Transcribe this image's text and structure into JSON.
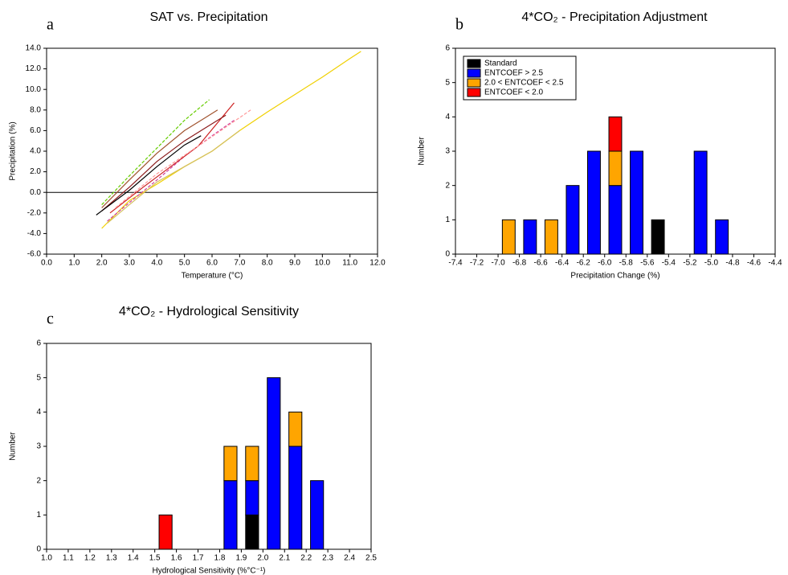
{
  "chart_data": [
    {
      "type": "line",
      "panel_label": "a",
      "title": "SAT vs. Precipitation",
      "xlabel": "Temperature (°C)",
      "ylabel": "Precipitation (%)",
      "xlim": [
        0,
        12
      ],
      "ylim": [
        -6,
        14
      ],
      "hline": 0,
      "xticks": [
        {
          "value": 0,
          "label": "0.0"
        },
        {
          "value": 1,
          "label": "1.0"
        },
        {
          "value": 2,
          "label": "2.0"
        },
        {
          "value": 3,
          "label": "3.0"
        },
        {
          "value": 4,
          "label": "4.0"
        },
        {
          "value": 5,
          "label": "5.0"
        },
        {
          "value": 6,
          "label": "6.0"
        },
        {
          "value": 7,
          "label": "7.0"
        },
        {
          "value": 8,
          "label": "8.0"
        },
        {
          "value": 9,
          "label": "9.0"
        },
        {
          "value": 10,
          "label": "10.0"
        },
        {
          "value": 11,
          "label": "11.0"
        },
        {
          "value": 12,
          "label": "12.0"
        }
      ],
      "yticks": [
        {
          "value": -6,
          "label": "-6.0"
        },
        {
          "value": -4,
          "label": "-4.0"
        },
        {
          "value": -2,
          "label": "-2.0"
        },
        {
          "value": 0,
          "label": "0.0"
        },
        {
          "value": 2,
          "label": "2.0"
        },
        {
          "value": 4,
          "label": "4.0"
        },
        {
          "value": 6,
          "label": "6.0"
        },
        {
          "value": 8,
          "label": "8.0"
        },
        {
          "value": 10,
          "label": "10.0"
        },
        {
          "value": 12,
          "label": "12.0"
        },
        {
          "value": 14,
          "label": "14.0"
        }
      ],
      "series": [
        {
          "color": "#f0d000",
          "dashed": false,
          "x": [
            2.0,
            3,
            4,
            5,
            6,
            7,
            8,
            9,
            10,
            11,
            11.4
          ],
          "values": [
            -3.5,
            -0.8,
            0.8,
            2.5,
            4.0,
            6.0,
            7.8,
            9.5,
            11.2,
            13.0,
            13.7
          ]
        },
        {
          "color": "#d4c060",
          "dashed": false,
          "x": [
            2.2,
            3,
            4,
            5,
            6,
            7
          ],
          "values": [
            -3.0,
            -1.2,
            1.0,
            2.5,
            4.0,
            6.0
          ]
        },
        {
          "color": "#66cc00",
          "dashed": true,
          "x": [
            2.0,
            3,
            4,
            5,
            5.9
          ],
          "values": [
            -1.2,
            1.6,
            4.3,
            7.0,
            9.0
          ]
        },
        {
          "color": "#a0522d",
          "dashed": false,
          "x": [
            2.0,
            3,
            4,
            5,
            6.2
          ],
          "values": [
            -1.5,
            1.2,
            3.8,
            6.0,
            8.0
          ]
        },
        {
          "color": "#d040a0",
          "dashed": true,
          "x": [
            2.2,
            3,
            4,
            5,
            6,
            6.8
          ],
          "values": [
            -2.8,
            -1.0,
            1.2,
            3.5,
            5.5,
            7.0
          ]
        },
        {
          "color": "#cc2020",
          "dashed": false,
          "x": [
            2.3,
            3.5,
            4.5,
            5.5,
            6.8
          ],
          "values": [
            -2.0,
            0.5,
            2.5,
            4.5,
            8.7
          ]
        },
        {
          "color": "#8b1a1a",
          "dashed": false,
          "x": [
            2.0,
            3,
            4,
            5,
            6.5
          ],
          "values": [
            -1.8,
            0.5,
            3.0,
            5.0,
            7.5
          ]
        },
        {
          "color": "#ff9999",
          "dashed": true,
          "x": [
            2.5,
            4,
            5.5,
            7.4
          ],
          "values": [
            -1.5,
            1.8,
            4.5,
            8.0
          ]
        },
        {
          "color": "#000000",
          "dashed": false,
          "x": [
            1.8,
            3,
            4,
            5,
            5.6
          ],
          "values": [
            -2.2,
            0.2,
            2.5,
            4.6,
            5.5
          ]
        }
      ]
    },
    {
      "type": "histogram",
      "panel_label": "b",
      "title": "4*CO₂ - Precipitation Adjustment",
      "xlabel": "Precipitation Change (%)",
      "ylabel": "Number",
      "xlim": [
        -7.4,
        -4.4
      ],
      "ylim": [
        0,
        6
      ],
      "legend": "upper left",
      "xticks": [
        -7.4,
        -7.2,
        {
          "value": -7,
          "label": "-7.0"
        },
        -6.8,
        -6.6,
        -6.4,
        -6.2,
        {
          "value": -6,
          "label": "-6.0"
        },
        -5.8,
        -5.6,
        -5.4,
        -5.2,
        {
          "value": -5,
          "label": "-5.0"
        },
        -4.8,
        -4.6,
        -4.4
      ],
      "yticks": [
        0,
        1,
        2,
        3,
        4,
        5,
        6
      ],
      "bins": [
        -7.4,
        -7.2,
        -7.0,
        -6.8,
        -6.6,
        -6.4,
        -6.2,
        -6.0,
        -5.8,
        -5.6,
        -5.4,
        -5.2,
        -5.0,
        -4.8,
        -4.6,
        -4.4
      ],
      "series": [
        {
          "name": "Standard",
          "color": "#000000",
          "values": [
            0,
            0,
            0,
            0,
            0,
            0,
            0,
            0,
            0,
            1,
            0,
            0,
            0,
            0,
            0
          ]
        },
        {
          "name": "ENTCOEF > 2.5",
          "color": "#0000ff",
          "values": [
            0,
            0,
            0,
            1,
            0,
            2,
            3,
            2,
            3,
            0,
            0,
            3,
            1,
            0,
            0
          ]
        },
        {
          "name": "2.0 < ENTCOEF < 2.5",
          "color": "#ffa500",
          "values": [
            0,
            0,
            1,
            0,
            1,
            0,
            0,
            1,
            0,
            0,
            0,
            0,
            0,
            0,
            0
          ]
        },
        {
          "name": "ENTCOEF < 2.0",
          "color": "#ff0000",
          "values": [
            0,
            0,
            0,
            0,
            0,
            0,
            0,
            1,
            0,
            0,
            0,
            0,
            0,
            0,
            0
          ]
        }
      ]
    },
    {
      "type": "histogram",
      "panel_label": "c",
      "title": "4*CO₂ - Hydrological Sensitivity",
      "xlabel": "Hydrological Sensitivity (%°C⁻¹)",
      "ylabel": "Number",
      "xlim": [
        1.0,
        2.5
      ],
      "ylim": [
        0,
        6
      ],
      "xticks": [
        {
          "value": 1,
          "label": "1.0"
        },
        1.1,
        1.2,
        1.3,
        1.4,
        1.5,
        1.6,
        1.7,
        1.8,
        1.9,
        {
          "value": 2,
          "label": "2.0"
        },
        2.1,
        2.2,
        2.3,
        2.4,
        2.5
      ],
      "yticks": [
        0,
        1,
        2,
        3,
        4,
        5,
        6
      ],
      "bins": [
        1.0,
        1.1,
        1.2,
        1.3,
        1.4,
        1.5,
        1.6,
        1.7,
        1.8,
        1.9,
        2.0,
        2.1,
        2.2,
        2.3,
        2.4,
        2.5
      ],
      "series": [
        {
          "color": "#000000",
          "values": [
            0,
            0,
            0,
            0,
            0,
            0,
            0,
            0,
            0,
            1,
            0,
            0,
            0,
            0,
            0
          ]
        },
        {
          "color": "#0000ff",
          "values": [
            0,
            0,
            0,
            0,
            0,
            0,
            0,
            0,
            2,
            1,
            5,
            3,
            2,
            0,
            0
          ]
        },
        {
          "color": "#ffa500",
          "values": [
            0,
            0,
            0,
            0,
            0,
            0,
            0,
            0,
            1,
            1,
            0,
            1,
            0,
            0,
            0
          ]
        },
        {
          "color": "#ff0000",
          "values": [
            0,
            0,
            0,
            0,
            0,
            1,
            0,
            0,
            0,
            0,
            0,
            0,
            0,
            0,
            0
          ]
        }
      ]
    }
  ]
}
